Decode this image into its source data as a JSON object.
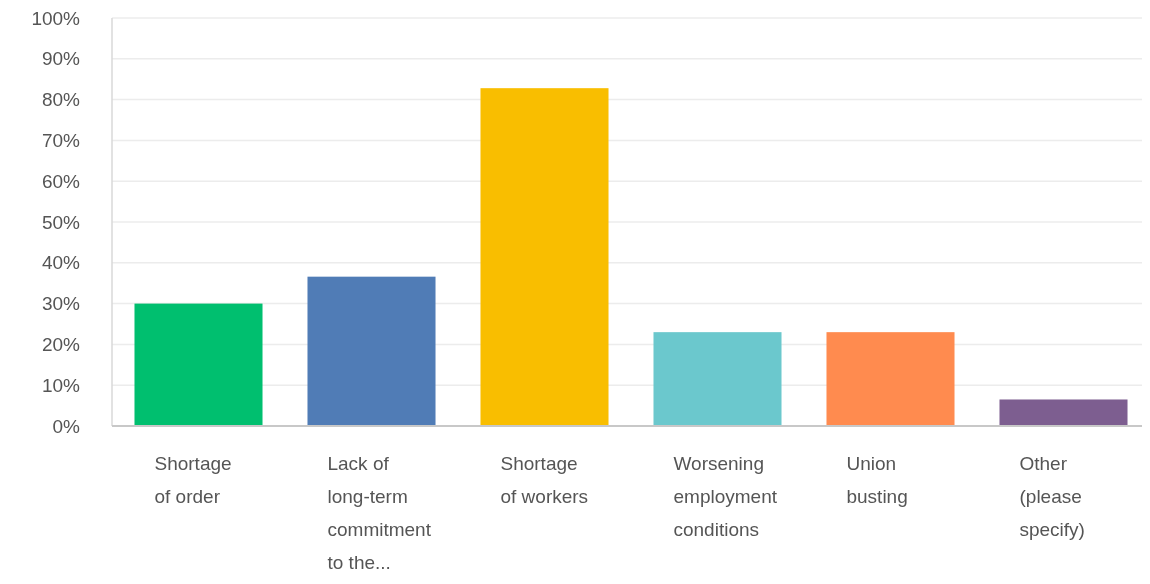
{
  "chart_data": {
    "type": "bar",
    "categories": [
      "Shortage of order",
      "Lack of long-term commitment to the...",
      "Shortage of workers",
      "Worsening employment conditions",
      "Union busting",
      "Other (please specify)"
    ],
    "values": [
      30,
      36.6,
      82.8,
      23,
      23,
      6.5
    ],
    "colors": [
      "#00bf6f",
      "#507cb6",
      "#f9be00",
      "#6bc8cd",
      "#ff8b4f",
      "#7d5e90"
    ],
    "ylim": [
      0,
      100
    ],
    "yticks": [
      {
        "value": 0,
        "label": "0%"
      },
      {
        "value": 10,
        "label": "10%"
      },
      {
        "value": 20,
        "label": "20%"
      },
      {
        "value": 30,
        "label": "30%"
      },
      {
        "value": 40,
        "label": "40%"
      },
      {
        "value": 50,
        "label": "50%"
      },
      {
        "value": 60,
        "label": "60%"
      },
      {
        "value": 70,
        "label": "70%"
      },
      {
        "value": 80,
        "label": "80%"
      },
      {
        "value": 90,
        "label": "90%"
      },
      {
        "value": 100,
        "label": "100%"
      }
    ],
    "grid": "y"
  }
}
